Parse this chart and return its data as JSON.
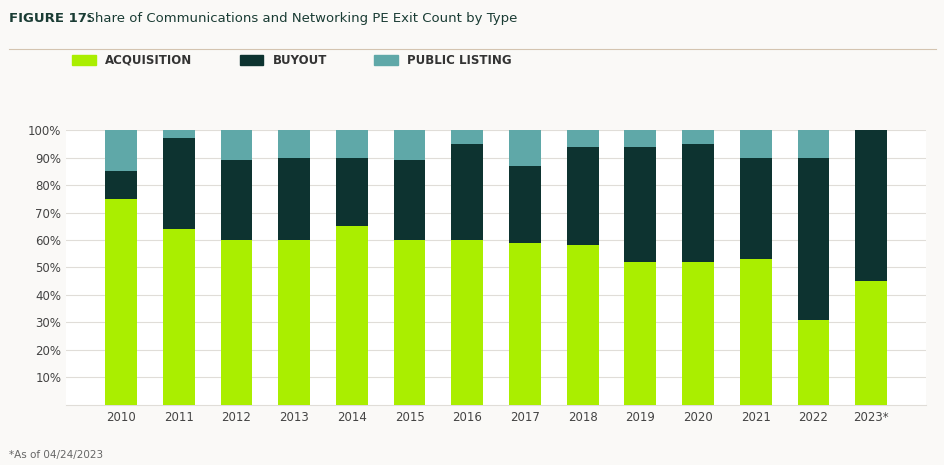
{
  "title_bold": "FIGURE 17:",
  "title_regular": "  Share of Communications and Networking PE Exit Count by Type",
  "years": [
    "2010",
    "2011",
    "2012",
    "2013",
    "2014",
    "2015",
    "2016",
    "2017",
    "2018",
    "2019",
    "2020",
    "2021",
    "2022",
    "2023*"
  ],
  "acquisition": [
    0.75,
    0.64,
    0.6,
    0.6,
    0.65,
    0.6,
    0.6,
    0.59,
    0.58,
    0.52,
    0.52,
    0.53,
    0.31,
    0.45
  ],
  "buyout": [
    0.1,
    0.33,
    0.29,
    0.3,
    0.25,
    0.29,
    0.35,
    0.28,
    0.36,
    0.42,
    0.43,
    0.37,
    0.59,
    0.55
  ],
  "public_listing": [
    0.15,
    0.03,
    0.11,
    0.1,
    0.1,
    0.11,
    0.05,
    0.13,
    0.06,
    0.06,
    0.05,
    0.1,
    0.1,
    0.0
  ],
  "color_acquisition": "#aaee00",
  "color_buyout": "#0d3330",
  "color_public_listing": "#5fa8a8",
  "legend_labels": [
    "ACQUISITION",
    "BUYOUT",
    "PUBLIC LISTING"
  ],
  "ylabel_ticks": [
    "10%",
    "20%",
    "30%",
    "40%",
    "50%",
    "60%",
    "70%",
    "80%",
    "90%",
    "100%"
  ],
  "footer": "*As of 04/24/2023",
  "bg_color": "#faf9f7",
  "plot_bg_color": "#ffffff",
  "title_color": "#1a3c34",
  "tick_color": "#444444",
  "bar_width": 0.55,
  "separator_color": "#d4c4b0",
  "grid_color": "#e0ddd8"
}
